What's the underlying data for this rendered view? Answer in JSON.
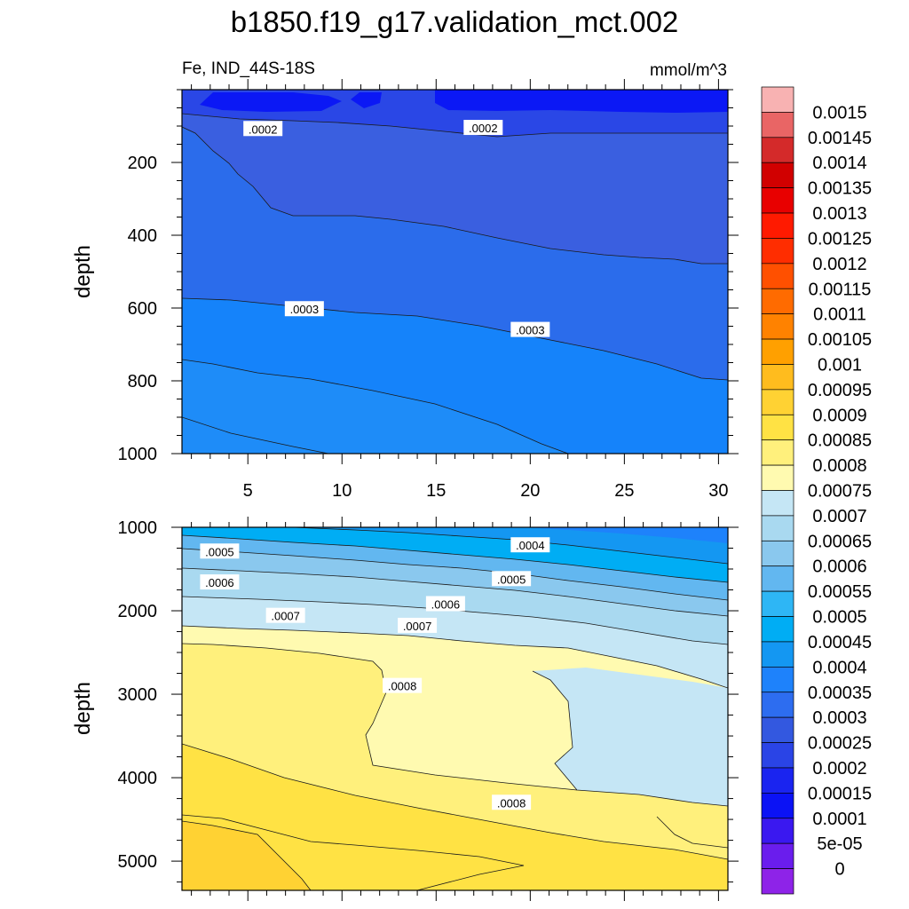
{
  "chart_data": [
    {
      "type": "contour",
      "title": "b1850.f19_g17.validation_mct.002",
      "subtitle_left": "Fe, IND_44S-18S",
      "subtitle_right": "mmol/m^3",
      "panel": "upper",
      "ylabel": "depth",
      "xlim": [
        1.5,
        30.5
      ],
      "ylim": [
        0,
        1000
      ],
      "x_ticks": [
        "5",
        "10",
        "15",
        "20",
        "25",
        "30"
      ],
      "y_ticks": [
        "200",
        "400",
        "600",
        "800",
        "1000"
      ],
      "contour_labels": [
        {
          "text": ".0002",
          "x": 5.8,
          "depth": 108
        },
        {
          "text": ".0002",
          "x": 17.5,
          "depth": 105
        },
        {
          "text": ".0003",
          "x": 8.0,
          "depth": 603
        },
        {
          "text": ".0003",
          "x": 20.0,
          "depth": 660
        }
      ]
    },
    {
      "type": "contour",
      "panel": "lower",
      "ylabel": "depth",
      "xlim": [
        1.5,
        30.5
      ],
      "ylim": [
        1000,
        5350
      ],
      "y_ticks": [
        "1000",
        "2000",
        "3000",
        "4000",
        "5000"
      ],
      "contour_labels": [
        {
          "text": ".0004",
          "x": 20.0,
          "depth": 1215
        },
        {
          "text": ".0005",
          "x": 3.5,
          "depth": 1290
        },
        {
          "text": ".0005",
          "x": 19.0,
          "depth": 1620
        },
        {
          "text": ".0006",
          "x": 3.5,
          "depth": 1660
        },
        {
          "text": ".0006",
          "x": 15.5,
          "depth": 1920
        },
        {
          "text": ".0007",
          "x": 7.0,
          "depth": 2060
        },
        {
          "text": ".0007",
          "x": 14.0,
          "depth": 2180
        },
        {
          "text": ".0008",
          "x": 13.2,
          "depth": 2900
        },
        {
          "text": ".0008",
          "x": 19.0,
          "depth": 4300
        }
      ]
    }
  ],
  "colorbar": {
    "labels": [
      "0.0015",
      "0.00145",
      "0.0014",
      "0.00135",
      "0.0013",
      "0.00125",
      "0.0012",
      "0.00115",
      "0.0011",
      "0.00105",
      "0.001",
      "0.00095",
      "0.0009",
      "0.00085",
      "0.0008",
      "0.00075",
      "0.0007",
      "0.00065",
      "0.0006",
      "0.00055",
      "0.0005",
      "0.00045",
      "0.0004",
      "0.00035",
      "0.0003",
      "0.00025",
      "0.0002",
      "0.00015",
      "0.0001",
      "5e-05",
      "0"
    ],
    "colors": [
      "#F8B2B2",
      "#E96565",
      "#D42A2A",
      "#D10000",
      "#E80000",
      "#FF1A00",
      "#FF2D00",
      "#FF5000",
      "#FF6B00",
      "#FF8200",
      "#FFA000",
      "#FFBC1E",
      "#FFD233",
      "#FFE244",
      "#FFF07C",
      "#FFFAB0",
      "#C5E6F5",
      "#A9D9F0",
      "#8AC8EE",
      "#62B7F0",
      "#2EB6F5",
      "#00ADF4",
      "#1497F2",
      "#1E82FB",
      "#2D6DF0",
      "#3358E0",
      "#2A44E6",
      "#1A24F0",
      "#0B12F5",
      "#3A18F0",
      "#6A1DED",
      "#8E23E8"
    ]
  }
}
